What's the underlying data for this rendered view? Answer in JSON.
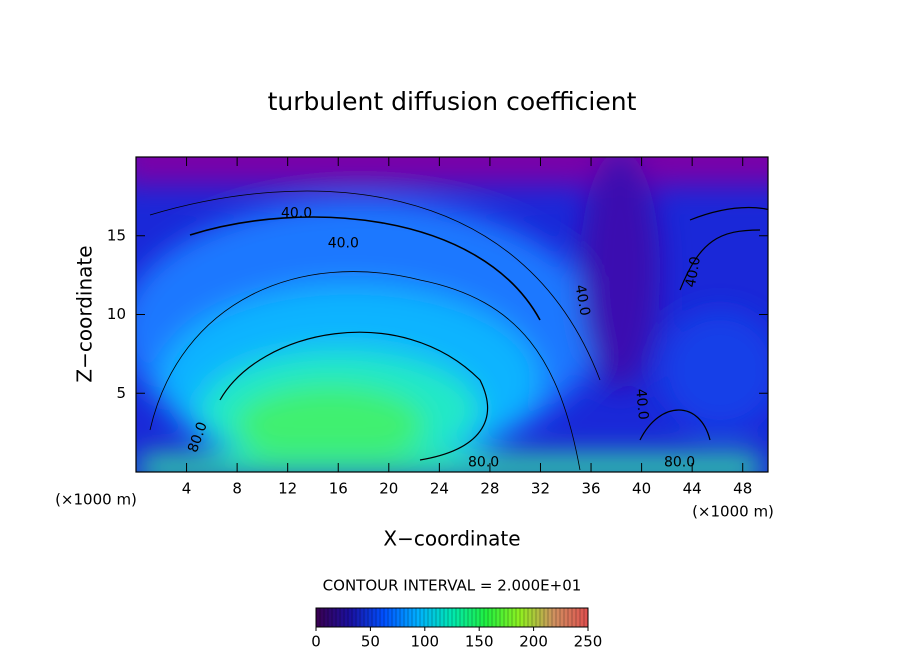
{
  "chart_data": {
    "type": "contour",
    "title": "turbulent diffusion coefficient",
    "xlabel": "X−coordinate",
    "ylabel": "Z−coordinate",
    "x_unit": "(×1000 m)",
    "xlim": [
      0,
      50
    ],
    "xticks": [
      4,
      8,
      12,
      16,
      20,
      24,
      28,
      32,
      36,
      40,
      44,
      48
    ],
    "ylim": [
      0,
      20
    ],
    "yticks": [
      5,
      10,
      15
    ],
    "contour_labels": [
      {
        "value": 40,
        "label": "40.0",
        "x": 12.7,
        "y": 16.4,
        "angle": 0
      },
      {
        "value": 40,
        "label": "40.0",
        "x": 16.4,
        "y": 14.5,
        "angle": 0
      },
      {
        "value": 40,
        "label": "40.0",
        "x": 35.3,
        "y": 10.9,
        "angle": 80
      },
      {
        "value": 40,
        "label": "40.0",
        "x": 44.1,
        "y": 12.7,
        "angle": -80
      },
      {
        "value": 40,
        "label": "40.0",
        "x": 40.0,
        "y": 4.3,
        "angle": 85
      },
      {
        "value": 80,
        "label": "80.0",
        "x": 4.9,
        "y": 2.2,
        "angle": -70
      },
      {
        "value": 80,
        "label": "80.0",
        "x": 27.5,
        "y": 0.6,
        "angle": 0
      },
      {
        "value": 80,
        "label": "80.0",
        "x": 43.0,
        "y": 0.6,
        "angle": 0
      }
    ],
    "contour_interval_text": "CONTOUR INTERVAL = 2.000E+01",
    "colorbar": {
      "lim": [
        0,
        250
      ],
      "ticks": [
        0,
        50,
        100,
        150,
        200,
        250
      ],
      "colors": [
        "#3a0050",
        "#1a10a0",
        "#0050ff",
        "#00b0ff",
        "#00e8b0",
        "#20f040",
        "#90f020",
        "#d09060",
        "#e05050"
      ]
    }
  }
}
